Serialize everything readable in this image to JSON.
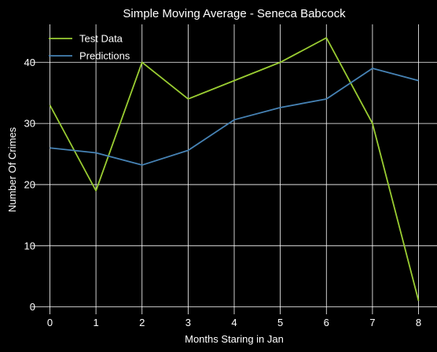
{
  "chart_data": {
    "type": "line",
    "title": "Simple Moving Average - Seneca Babcock",
    "xlabel": "Months Staring in Jan",
    "ylabel": "Number Of Crimes",
    "x": [
      0,
      1,
      2,
      3,
      4,
      5,
      6,
      7,
      8
    ],
    "xticks": [
      0,
      1,
      2,
      3,
      4,
      5,
      6,
      7,
      8
    ],
    "yticks": [
      0,
      10,
      20,
      30,
      40
    ],
    "xlim": [
      -0.4,
      8.4
    ],
    "ylim": [
      -1.2,
      46.2
    ],
    "grid": true,
    "legend_position": "top-left",
    "series": [
      {
        "name": "Test Data",
        "color": "#9acd32",
        "values": [
          33,
          19,
          40,
          34,
          37,
          40,
          44,
          30,
          1
        ]
      },
      {
        "name": "Predictions",
        "color": "#4682b4",
        "values": [
          26,
          25.2,
          23.2,
          25.6,
          30.6,
          32.6,
          34,
          39,
          37
        ]
      }
    ],
    "background": "#000000",
    "grid_color": "#ffffff"
  }
}
